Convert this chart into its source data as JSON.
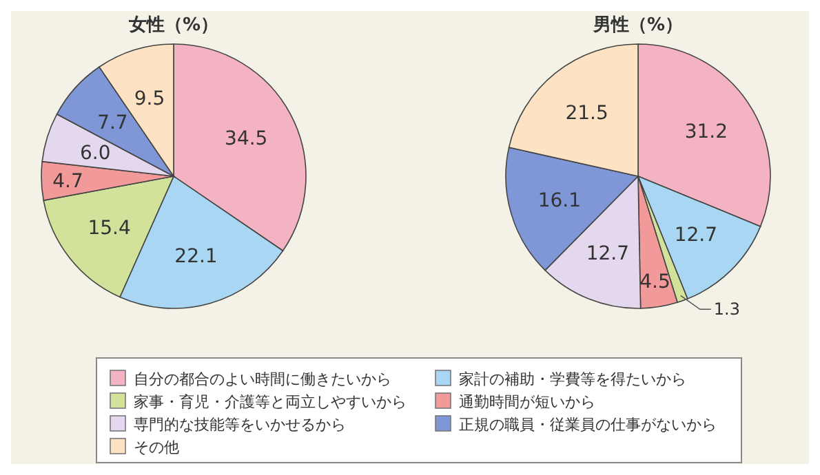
{
  "chart_data": [
    {
      "type": "pie",
      "title": "女性（%）",
      "legend": "bottom",
      "categories": [
        "自分の都合のよい時間に働きたいから",
        "家計の補助・学費等を得たいから",
        "家事・育児・介護等と両立しやすいから",
        "通勤時間が短いから",
        "専門的な技能等をいかせるから",
        "正規の職員・従業員の仕事がないから",
        "その他"
      ],
      "values": [
        34.5,
        22.1,
        15.4,
        4.7,
        6.0,
        7.7,
        9.5
      ],
      "value_labels": [
        "34.5",
        "22.1",
        "15.4",
        "4.7",
        "6.0",
        "7.7",
        "9.5"
      ],
      "colors": [
        "#f4b3c2",
        "#a9d6f2",
        "#d2e29a",
        "#f29a9a",
        "#e4d8ee",
        "#7f97d6",
        "#fde3c4"
      ]
    },
    {
      "type": "pie",
      "title": "男性（%）",
      "values": [
        31.2,
        12.7,
        1.3,
        4.5,
        12.7,
        16.1,
        21.5
      ],
      "value_labels": [
        "31.2",
        "12.7",
        "1.3",
        "4.5",
        "12.7",
        "16.1",
        "21.5"
      ],
      "colors": [
        "#f4b3c2",
        "#a9d6f2",
        "#d2e29a",
        "#f29a9a",
        "#e4d8ee",
        "#7f97d6",
        "#fde3c4"
      ]
    }
  ]
}
